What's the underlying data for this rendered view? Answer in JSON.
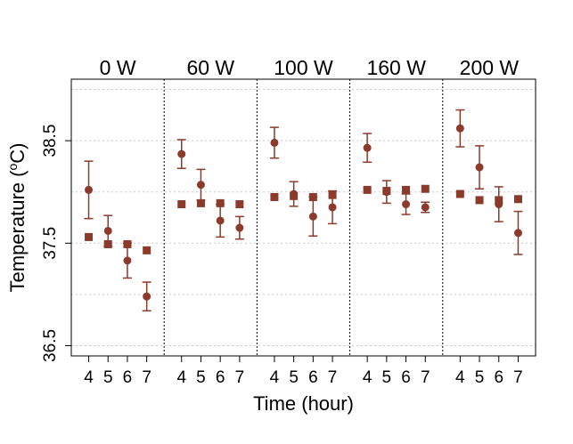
{
  "chart_data": {
    "type": "scatter",
    "ylabel": "Temperature (°C)",
    "ylabel_parts": {
      "base": "Temperature (",
      "superscript": "o",
      "unit": "C)"
    },
    "xlabel": "Time (hour)",
    "panels": [
      "0 W",
      "60 W",
      "100 W",
      "160 W",
      "200 W"
    ],
    "x_ticks": [
      "4",
      "5",
      "6",
      "7"
    ],
    "y_ticks": [
      "36.5",
      "37.5",
      "38.5"
    ],
    "ylim": [
      36.4,
      39.1
    ],
    "grid": true,
    "colors": {
      "marker": "#8b3a2b",
      "grid": "#c8c8c8",
      "frame": "#000000"
    },
    "series": [
      {
        "marker": "circle",
        "panels": [
          {
            "x": [
              4,
              5,
              6,
              7
            ],
            "y": [
              38.02,
              37.62,
              37.33,
              36.98
            ],
            "err": [
              0.28,
              0.15,
              0.17,
              0.14
            ]
          },
          {
            "x": [
              4,
              5,
              6,
              7
            ],
            "y": [
              38.37,
              38.07,
              37.72,
              37.65
            ],
            "err": [
              0.14,
              0.15,
              0.16,
              0.11
            ]
          },
          {
            "x": [
              4,
              5,
              6,
              7
            ],
            "y": [
              38.48,
              37.98,
              37.76,
              37.85
            ],
            "err": [
              0.15,
              0.12,
              0.19,
              0.16
            ]
          },
          {
            "x": [
              4,
              5,
              6,
              7
            ],
            "y": [
              38.43,
              38.0,
              37.88,
              37.85
            ],
            "err": [
              0.14,
              0.11,
              0.1,
              0.05
            ]
          },
          {
            "x": [
              4,
              5,
              6,
              7
            ],
            "y": [
              38.62,
              38.24,
              37.88,
              37.6
            ],
            "err": [
              0.18,
              0.21,
              0.17,
              0.21
            ]
          }
        ]
      },
      {
        "marker": "square",
        "panels": [
          {
            "x": [
              4,
              5,
              6,
              7
            ],
            "y": [
              37.56,
              37.49,
              37.49,
              37.43
            ]
          },
          {
            "x": [
              4,
              5,
              6,
              7
            ],
            "y": [
              37.88,
              37.89,
              37.89,
              37.88
            ]
          },
          {
            "x": [
              4,
              5,
              6,
              7
            ],
            "y": [
              37.95,
              37.96,
              37.95,
              37.97
            ]
          },
          {
            "x": [
              4,
              5,
              6,
              7
            ],
            "y": [
              38.02,
              38.01,
              38.02,
              38.03
            ]
          },
          {
            "x": [
              4,
              5,
              6,
              7
            ],
            "y": [
              37.98,
              37.92,
              37.92,
              37.93
            ]
          }
        ]
      }
    ]
  }
}
